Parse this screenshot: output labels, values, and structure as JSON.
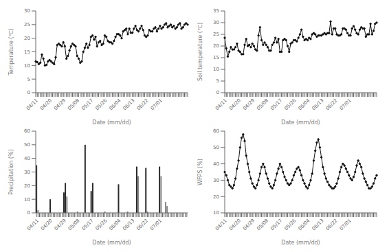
{
  "chart_data": [
    {
      "type": "line",
      "xlabel": "Date (mm/dd)",
      "ylabel": "Temperature (℃)",
      "color": "#111111",
      "marker": "circle",
      "grid": false,
      "categories": [
        "04/11",
        null,
        null,
        null,
        null,
        null,
        null,
        null,
        null,
        "04/20",
        null,
        null,
        null,
        null,
        null,
        null,
        null,
        null,
        "04/29",
        null,
        null,
        null,
        null,
        null,
        null,
        null,
        null,
        "05/08",
        null,
        null,
        null,
        null,
        null,
        null,
        null,
        null,
        "05/17",
        null,
        null,
        null,
        null,
        null,
        null,
        null,
        null,
        "05/26",
        null,
        null,
        null,
        null,
        null,
        null,
        null,
        null,
        "06/04",
        null,
        null,
        null,
        null,
        null,
        null,
        null,
        null,
        "06/13",
        null,
        null,
        null,
        null,
        null,
        null,
        null,
        null,
        "06/22",
        null,
        null,
        null,
        null,
        null,
        null,
        null,
        null,
        "07/01",
        null,
        null,
        null,
        null,
        null,
        null,
        null,
        null,
        null,
        null,
        null,
        null,
        null,
        null,
        null,
        null,
        null,
        null
      ],
      "values": [
        11.5,
        11.2,
        10.5,
        11.0,
        14.0,
        12.5,
        10.0,
        10.2,
        11.5,
        12.0,
        11.5,
        11.0,
        10.5,
        13.0,
        17.5,
        18.0,
        17.5,
        17.0,
        18.5,
        17.0,
        12.5,
        13.5,
        15.5,
        17.0,
        18.0,
        17.5,
        17.0,
        13.5,
        12.5,
        11.0,
        11.5,
        15.0,
        16.5,
        18.0,
        16.5,
        17.5,
        20.5,
        21.0,
        19.5,
        20.5,
        17.0,
        18.5,
        19.0,
        17.5,
        18.0,
        21.0,
        20.5,
        19.0,
        18.5,
        18.5,
        18.0,
        19.0,
        20.5,
        21.5,
        21.5,
        21.0,
        20.0,
        22.5,
        23.0,
        23.5,
        21.5,
        23.5,
        22.0,
        22.0,
        23.5,
        24.5,
        23.0,
        22.5,
        23.5,
        24.5,
        23.0,
        21.0,
        20.5,
        21.0,
        23.0,
        22.5,
        22.5,
        23.5,
        24.0,
        22.5,
        23.5,
        24.5,
        23.5,
        24.0,
        25.0,
        25.5,
        24.0,
        24.5,
        25.0,
        24.0,
        24.5,
        23.5,
        24.0,
        25.0,
        25.5,
        23.5,
        24.0,
        25.0,
        25.5,
        25.0
      ],
      "ylim": [
        0,
        30
      ],
      "yticks": [
        0,
        5,
        10,
        15,
        20,
        25,
        30
      ]
    },
    {
      "type": "line",
      "xlabel": "Date (mm/dd)",
      "ylabel": "Soil temperature (℃)",
      "color": "#111111",
      "marker": "circle",
      "grid": false,
      "categories": [
        "04/11",
        null,
        null,
        null,
        null,
        null,
        null,
        null,
        null,
        "04/20",
        null,
        null,
        null,
        null,
        null,
        null,
        null,
        null,
        "04/29",
        null,
        null,
        null,
        null,
        null,
        null,
        null,
        null,
        "05/08",
        null,
        null,
        null,
        null,
        null,
        null,
        null,
        null,
        "05/17",
        null,
        null,
        null,
        null,
        null,
        null,
        null,
        null,
        "05/26",
        null,
        null,
        null,
        null,
        null,
        null,
        null,
        null,
        "06/04",
        null,
        null,
        null,
        null,
        null,
        null,
        null,
        null,
        "06/13",
        null,
        null,
        null,
        null,
        null,
        null,
        null,
        null,
        "06/22",
        null,
        null,
        null,
        null,
        null,
        null,
        null,
        null,
        "07/01",
        null,
        null,
        null,
        null,
        null,
        null,
        null,
        null,
        null,
        null,
        null,
        null,
        null,
        null,
        null,
        null,
        null,
        null
      ],
      "values": [
        23.5,
        19.0,
        15.5,
        17.5,
        19.5,
        18.5,
        18.5,
        19.5,
        21.0,
        18.0,
        17.5,
        16.5,
        16.5,
        20.5,
        23.0,
        20.0,
        20.5,
        19.5,
        21.0,
        20.0,
        18.5,
        18.0,
        24.5,
        28.0,
        22.5,
        20.5,
        21.5,
        20.5,
        19.5,
        18.0,
        18.0,
        20.5,
        21.5,
        23.5,
        21.5,
        23.0,
        17.5,
        17.5,
        22.5,
        23.0,
        22.5,
        20.0,
        17.5,
        21.0,
        21.5,
        22.5,
        22.5,
        22.0,
        23.5,
        25.0,
        27.0,
        24.0,
        22.5,
        23.0,
        22.5,
        23.5,
        23.0,
        25.0,
        25.5,
        25.0,
        24.0,
        24.5,
        24.5,
        24.5,
        25.0,
        25.5,
        25.0,
        25.5,
        25.5,
        30.5,
        25.0,
        27.5,
        27.5,
        25.0,
        24.5,
        24.5,
        25.0,
        27.5,
        27.5,
        27.0,
        25.5,
        24.5,
        24.5,
        27.5,
        28.5,
        27.0,
        25.5,
        25.0,
        27.0,
        28.0,
        27.5,
        27.5,
        24.0,
        25.0,
        25.0,
        29.5,
        25.0,
        26.5,
        29.5,
        30.0
      ],
      "ylim": [
        0,
        35
      ],
      "yticks": [
        0,
        5,
        10,
        15,
        20,
        25,
        30,
        35
      ]
    },
    {
      "type": "bar",
      "xlabel": "Date (mm/dd)",
      "ylabel": "Precipitation (%)",
      "grid": false,
      "categories": [
        "04/11",
        null,
        null,
        null,
        null,
        null,
        null,
        null,
        null,
        "04/20",
        null,
        null,
        null,
        null,
        null,
        null,
        null,
        null,
        "04/29",
        null,
        null,
        null,
        null,
        null,
        null,
        null,
        null,
        "05/08",
        null,
        null,
        null,
        null,
        null,
        null,
        null,
        null,
        "05/17",
        null,
        null,
        null,
        null,
        null,
        null,
        null,
        null,
        "05/26",
        null,
        null,
        null,
        null,
        null,
        null,
        null,
        null,
        "06/04",
        null,
        null,
        null,
        null,
        null,
        null,
        null,
        null,
        "06/13",
        null,
        null,
        null,
        null,
        null,
        null,
        null,
        null,
        "06/22",
        null,
        null,
        null,
        null,
        null,
        null,
        null,
        null,
        "07/01",
        null,
        null,
        null,
        null,
        null,
        null,
        null,
        null,
        null,
        null,
        null,
        null,
        null,
        null,
        null,
        null,
        null,
        null
      ],
      "values": [
        35,
        2,
        null,
        null,
        null,
        null,
        null,
        null,
        null,
        10,
        null,
        null,
        null,
        null,
        null,
        null,
        null,
        null,
        15,
        22,
        12,
        null,
        null,
        null,
        null,
        null,
        null,
        1,
        null,
        null,
        null,
        null,
        50,
        null,
        null,
        null,
        16,
        22,
        null,
        null,
        null,
        null,
        null,
        null,
        null,
        1,
        null,
        null,
        null,
        null,
        null,
        null,
        null,
        null,
        21,
        null,
        null,
        null,
        null,
        null,
        1,
        null,
        null,
        null,
        null,
        null,
        34,
        27,
        null,
        null,
        null,
        null,
        33,
        1,
        null,
        null,
        null,
        null,
        null,
        null,
        null,
        34,
        27,
        null,
        null,
        8,
        5,
        null,
        null,
        null,
        null,
        null,
        null,
        null,
        null,
        null,
        null,
        null,
        null,
        null
      ],
      "colors": [
        "#2a2a2a",
        "#888888",
        null,
        null,
        null,
        null,
        null,
        null,
        null,
        "#2a2a2a",
        null,
        null,
        null,
        null,
        null,
        null,
        null,
        null,
        "#2a2a2a",
        "#2a2a2a",
        "#888888",
        null,
        null,
        null,
        null,
        null,
        null,
        "#888888",
        null,
        null,
        null,
        null,
        "#2a2a2a",
        null,
        null,
        null,
        "#2a2a2a",
        "#2a2a2a",
        null,
        null,
        null,
        null,
        null,
        null,
        null,
        "#888888",
        null,
        null,
        null,
        null,
        null,
        null,
        null,
        null,
        "#2a2a2a",
        null,
        null,
        null,
        null,
        null,
        "#888888",
        null,
        null,
        null,
        null,
        null,
        "#2a2a2a",
        "#888888",
        null,
        null,
        null,
        null,
        "#2a2a2a",
        "#888888",
        null,
        null,
        null,
        null,
        null,
        null,
        null,
        "#2a2a2a",
        "#888888",
        null,
        null,
        "#888888",
        "#888888",
        null,
        null,
        null,
        null,
        null,
        null,
        null,
        null,
        null,
        null,
        null,
        null,
        null
      ],
      "ylim": [
        0,
        60
      ],
      "yticks": [
        0,
        10,
        20,
        30,
        40,
        50,
        60
      ]
    },
    {
      "type": "line",
      "xlabel": "Date (mm/dd)",
      "ylabel": "WFPS (%)",
      "color": "#111111",
      "marker": "circle",
      "grid": false,
      "categories": [
        "04/11",
        null,
        null,
        null,
        null,
        null,
        null,
        null,
        null,
        "04/20",
        null,
        null,
        null,
        null,
        null,
        null,
        null,
        null,
        "04/29",
        null,
        null,
        null,
        null,
        null,
        null,
        null,
        null,
        "05/08",
        null,
        null,
        null,
        null,
        null,
        null,
        null,
        null,
        "05/17",
        null,
        null,
        null,
        null,
        null,
        null,
        null,
        null,
        "05/26",
        null,
        null,
        null,
        null,
        null,
        null,
        null,
        null,
        "06/04",
        null,
        null,
        null,
        null,
        null,
        null,
        null,
        null,
        "06/13",
        null,
        null,
        null,
        null,
        null,
        null,
        null,
        null,
        "06/22",
        null,
        null,
        null,
        null,
        null,
        null,
        null,
        null,
        "07/01",
        null,
        null,
        null,
        null,
        null,
        null,
        null,
        null,
        null,
        null,
        null,
        null,
        null,
        null,
        null,
        null,
        null,
        null
      ],
      "values": [
        35,
        33,
        30,
        27,
        26,
        25,
        27,
        31,
        37,
        42,
        50,
        56,
        58,
        54,
        45,
        40,
        35,
        31,
        28,
        26,
        25,
        27,
        30,
        34,
        38,
        40,
        38,
        34,
        31,
        28,
        26,
        25,
        27,
        30,
        34,
        37,
        40,
        38,
        35,
        32,
        30,
        28,
        27,
        28,
        30,
        33,
        35,
        37,
        38,
        36,
        33,
        30,
        28,
        26,
        25,
        27,
        30,
        34,
        42,
        48,
        53,
        55,
        50,
        44,
        38,
        34,
        31,
        29,
        27,
        26,
        25,
        25,
        26,
        28,
        31,
        35,
        38,
        40,
        39,
        37,
        35,
        33,
        31,
        30,
        32,
        35,
        39,
        42,
        40,
        38,
        34,
        31,
        29,
        27,
        25,
        25,
        26,
        28,
        31,
        33
      ],
      "ylim": [
        10,
        60
      ],
      "yticks": [
        10,
        20,
        30,
        40,
        50,
        60
      ]
    }
  ]
}
